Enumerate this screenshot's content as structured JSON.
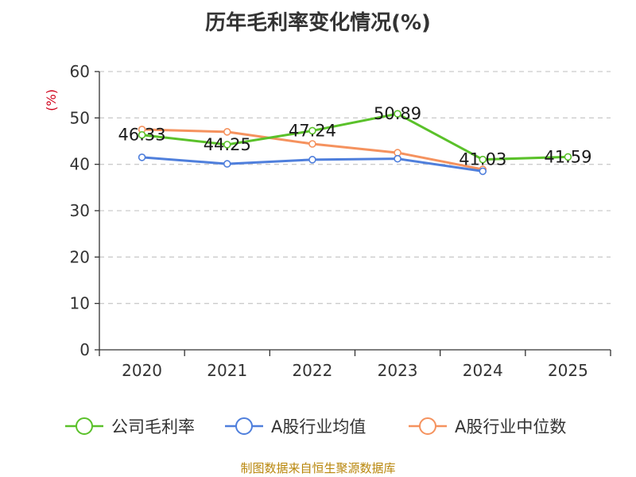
{
  "chart_data": {
    "type": "line",
    "title": "历年毛利率变化情况(%)",
    "ylabel": "(%)",
    "xlabel": "",
    "categories": [
      "2020",
      "2021",
      "2022",
      "2023",
      "2024",
      "2025"
    ],
    "ylim": [
      0,
      60
    ],
    "yticks": [
      0,
      10,
      20,
      30,
      40,
      50,
      60
    ],
    "grid": true,
    "legend_position": "bottom",
    "series": [
      {
        "name": "公司毛利率",
        "color": "#5ac12a",
        "values": [
          46.33,
          44.25,
          47.24,
          50.89,
          41.03,
          41.59
        ],
        "labels": [
          "46.33",
          "44.25",
          "47.24",
          "50.89",
          "41.03",
          "41.59"
        ]
      },
      {
        "name": "A股行业均值",
        "color": "#4f7fdc",
        "values": [
          41.5,
          40.1,
          41.0,
          41.2,
          38.5,
          null
        ]
      },
      {
        "name": "A股行业中位数",
        "color": "#f5925e",
        "values": [
          47.5,
          47.0,
          44.4,
          42.5,
          38.9,
          null
        ]
      }
    ],
    "source": "制图数据来自恒生聚源数据库"
  }
}
